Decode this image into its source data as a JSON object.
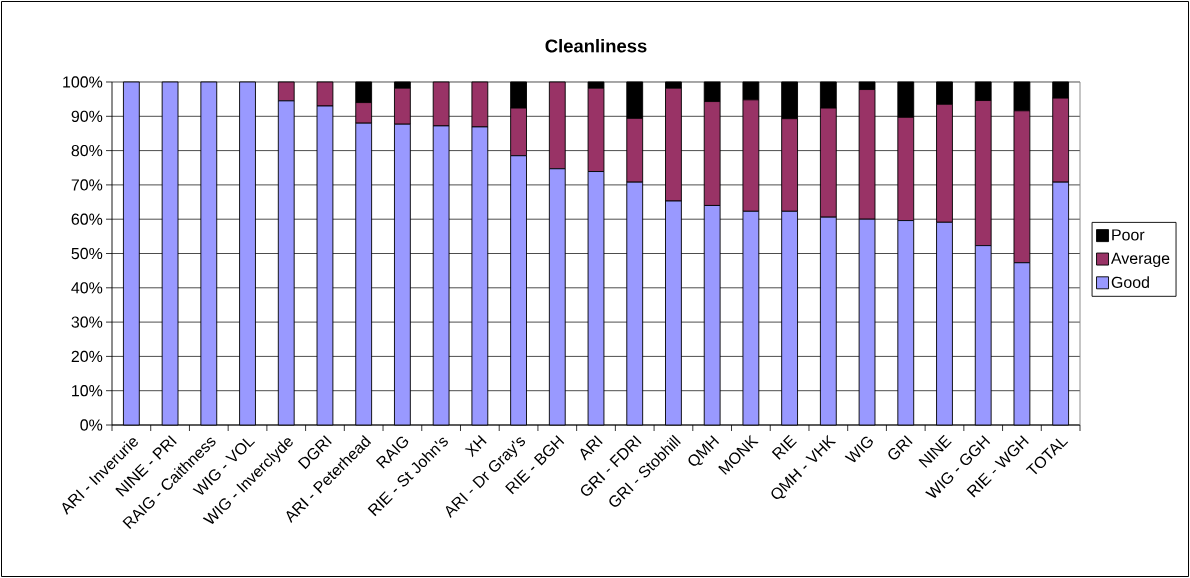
{
  "chart_data": {
    "type": "bar",
    "title": "Cleanliness",
    "stacked": true,
    "grid": "y",
    "legend": "right",
    "categories": [
      "ARI - Inverurie",
      "NINE - PRI",
      "RAIG - Caithness",
      "WIG - VOL",
      "WIG - Inverclyde",
      "DGRI",
      "ARI - Peterhead",
      "RAIG",
      "RIE - St John's",
      "XH",
      "ARI - Dr Gray's",
      "RIE - BGH",
      "ARI",
      "GRI - FDRI",
      "GRI - Stobhill",
      "QMH",
      "MONK",
      "RIE",
      "QMH - VHK",
      "WIG",
      "GRI",
      "NINE",
      "WIG - GGH",
      "RIE - WGH",
      "TOTAL"
    ],
    "series": [
      {
        "name": "Good",
        "color": "#9999ff",
        "values": [
          100,
          100,
          100,
          100,
          94.5,
          93,
          88,
          87.7,
          87.2,
          86.9,
          78.5,
          74.7,
          73.9,
          70.8,
          65.3,
          64,
          62.3,
          62.3,
          60.6,
          60,
          59.6,
          59.1,
          52.3,
          47.3,
          70.8
        ]
      },
      {
        "name": "Average",
        "color": "#993366",
        "values": [
          0,
          0,
          0,
          0,
          5.5,
          7,
          6,
          10.5,
          12.8,
          13.1,
          13.9,
          25.3,
          24.3,
          18.6,
          32.9,
          30.3,
          32.5,
          27,
          31.8,
          37.8,
          30.1,
          34.4,
          42.3,
          44.3,
          24.5
        ]
      },
      {
        "name": "Poor",
        "color": "#000000",
        "values": [
          0,
          0,
          0,
          0,
          0,
          0,
          6,
          1.8,
          0,
          0,
          7.6,
          0,
          1.8,
          10.6,
          1.8,
          5.7,
          5.2,
          10.7,
          7.6,
          2.2,
          10.3,
          6.5,
          5.4,
          8.4,
          4.7
        ]
      }
    ],
    "ylim": [
      0,
      100
    ],
    "yticks": [
      {
        "value": 0,
        "label": "0%"
      },
      {
        "value": 10,
        "label": "10%"
      },
      {
        "value": 20,
        "label": "20%"
      },
      {
        "value": 30,
        "label": "30%"
      },
      {
        "value": 40,
        "label": "40%"
      },
      {
        "value": 50,
        "label": "50%"
      },
      {
        "value": 60,
        "label": "60%"
      },
      {
        "value": 70,
        "label": "70%"
      },
      {
        "value": 80,
        "label": "80%"
      },
      {
        "value": 90,
        "label": "90%"
      },
      {
        "value": 100,
        "label": "100%"
      }
    ]
  }
}
